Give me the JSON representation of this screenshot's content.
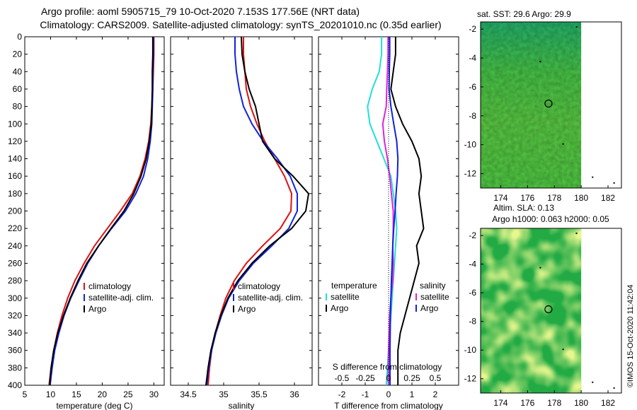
{
  "header": {
    "title_line1": "Argo profile: aoml 5905715_79 10-Oct-2020 7.153S 177.56E (NRT data)",
    "title_line2": "Climatology: CARS2009. Satellite-adjusted climatology: synTS_20201010.nc (0.35d earlier)"
  },
  "credit": "©IMOS 15-Oct-2020 11:42:04",
  "colors": {
    "climatology": "#dd1111",
    "satellite": "#1122dd",
    "argo": "#000000",
    "sat_temp": "#22dddd",
    "sat_sal": "#dd22dd",
    "map_dark": "#22aa44",
    "map_light": "#ccee44"
  },
  "chart_data": [
    {
      "type": "line",
      "name": "temperature",
      "title": "",
      "xlabel": "temperature (deg C)",
      "ylabel": "",
      "xlim": [
        5,
        32
      ],
      "ylim": [
        400,
        0
      ],
      "xticks": [
        5,
        10,
        15,
        20,
        25,
        30
      ],
      "yticks": [
        0,
        20,
        40,
        60,
        80,
        100,
        120,
        140,
        160,
        180,
        200,
        220,
        240,
        260,
        280,
        300,
        320,
        340,
        360,
        380,
        400
      ],
      "legend": [
        "climatology",
        "satellite-adj. clim.",
        "Argo"
      ],
      "series": [
        {
          "name": "climatology",
          "color": "#dd1111",
          "x": [
            30.0,
            30.0,
            29.9,
            29.8,
            29.6,
            29.4,
            29.0,
            28.3,
            27.3,
            25.8,
            23.5,
            21.0,
            18.5,
            16.5,
            14.7,
            13.3,
            12.2,
            11.3,
            10.6,
            10.1,
            9.7
          ],
          "y": [
            0,
            20,
            40,
            60,
            80,
            100,
            120,
            140,
            160,
            180,
            200,
            220,
            240,
            260,
            280,
            300,
            320,
            340,
            360,
            380,
            400
          ]
        },
        {
          "name": "satellite-adj. clim.",
          "color": "#1122dd",
          "x": [
            29.9,
            29.9,
            29.8,
            29.8,
            29.7,
            29.6,
            29.3,
            28.8,
            28.0,
            26.5,
            24.5,
            21.8,
            19.3,
            17.2,
            15.5,
            13.9,
            12.6,
            11.6,
            10.8,
            10.3,
            9.9
          ],
          "y": [
            0,
            20,
            40,
            60,
            80,
            100,
            120,
            140,
            160,
            180,
            200,
            220,
            240,
            260,
            280,
            300,
            320,
            340,
            360,
            380,
            400
          ]
        },
        {
          "name": "Argo",
          "color": "#000000",
          "x": [
            29.8,
            29.8,
            29.7,
            29.7,
            29.6,
            29.5,
            29.1,
            28.5,
            27.5,
            26.1,
            24.2,
            21.7,
            19.3,
            17.0,
            15.3,
            13.8,
            12.5,
            11.4,
            10.6,
            10.1,
            9.8
          ],
          "y": [
            0,
            20,
            40,
            60,
            80,
            100,
            120,
            140,
            160,
            180,
            200,
            220,
            240,
            260,
            280,
            300,
            320,
            340,
            360,
            380,
            400
          ]
        }
      ]
    },
    {
      "type": "line",
      "name": "salinity",
      "title": "",
      "xlabel": "salinity",
      "ylabel": "",
      "xlim": [
        34.25,
        36.25
      ],
      "ylim": [
        400,
        0
      ],
      "xticks": [
        34.5,
        35,
        35.5,
        36
      ],
      "yticks": [
        0,
        20,
        40,
        60,
        80,
        100,
        120,
        140,
        160,
        180,
        200,
        220,
        240,
        260,
        280,
        300,
        320,
        340,
        360,
        380,
        400
      ],
      "legend": [
        "climatology",
        "satellite-adj. clim.",
        "Argo"
      ],
      "series": [
        {
          "name": "climatology",
          "color": "#dd1111",
          "x": [
            35.28,
            35.28,
            35.3,
            35.32,
            35.38,
            35.47,
            35.58,
            35.72,
            35.86,
            35.96,
            35.95,
            35.8,
            35.55,
            35.32,
            35.15,
            35.03,
            34.95,
            34.88,
            34.83,
            34.8,
            34.78
          ],
          "y": [
            0,
            20,
            40,
            60,
            80,
            100,
            120,
            140,
            160,
            180,
            200,
            220,
            240,
            260,
            280,
            300,
            320,
            340,
            360,
            380,
            400
          ]
        },
        {
          "name": "satellite-adj. clim.",
          "color": "#1122dd",
          "x": [
            35.16,
            35.16,
            35.18,
            35.22,
            35.28,
            35.4,
            35.56,
            35.76,
            35.94,
            36.04,
            36.04,
            35.92,
            35.68,
            35.42,
            35.22,
            35.07,
            34.97,
            34.89,
            34.83,
            34.79,
            34.76
          ],
          "y": [
            0,
            20,
            40,
            60,
            80,
            100,
            120,
            140,
            160,
            180,
            200,
            220,
            240,
            260,
            280,
            300,
            320,
            340,
            360,
            380,
            400
          ]
        },
        {
          "name": "Argo",
          "color": "#000000",
          "x": [
            35.25,
            35.26,
            35.3,
            35.36,
            35.45,
            35.5,
            35.55,
            35.72,
            35.98,
            36.2,
            36.16,
            35.96,
            35.65,
            35.4,
            35.2,
            35.06,
            34.96,
            34.88,
            34.82,
            34.78,
            34.75
          ],
          "y": [
            0,
            20,
            40,
            60,
            80,
            100,
            120,
            140,
            160,
            180,
            200,
            220,
            240,
            260,
            280,
            300,
            320,
            340,
            360,
            380,
            400
          ]
        }
      ]
    },
    {
      "type": "line",
      "name": "differences",
      "title": "",
      "xlabel": "T difference from climatology",
      "xlabel_top": "S difference from climatology",
      "ylabel": "",
      "xlim": [
        -3,
        3
      ],
      "ylim": [
        400,
        0
      ],
      "xticks": [
        -2,
        -1,
        0,
        1,
        2
      ],
      "xticks_s": [
        "-0.5",
        "-0.25",
        "0",
        "0.25",
        "0.5"
      ],
      "yticks": [
        0,
        20,
        40,
        60,
        80,
        100,
        120,
        140,
        160,
        180,
        200,
        220,
        240,
        260,
        280,
        300,
        320,
        340,
        360,
        380,
        400
      ],
      "legend_left_title": "temperature",
      "legend_right_title": "salinity",
      "legend_left": [
        "satellite",
        "Argo"
      ],
      "legend_right": [
        "satellite",
        "Argo"
      ],
      "series": [
        {
          "name": "temperature satellite",
          "color": "#22dddd",
          "x": [
            -0.3,
            -0.3,
            -0.4,
            -0.7,
            -0.9,
            -0.8,
            -0.5,
            -0.2,
            0.1,
            0.2,
            0.3,
            0.35,
            0.3,
            0.25,
            0.2,
            0.15,
            0.1,
            0.05,
            0.0,
            -0.05,
            -0.1
          ],
          "y": [
            0,
            20,
            40,
            60,
            80,
            100,
            120,
            140,
            160,
            180,
            200,
            220,
            240,
            260,
            280,
            300,
            320,
            340,
            360,
            380,
            400
          ]
        },
        {
          "name": "temperature Argo",
          "color": "#000000",
          "x": [
            0.3,
            0.3,
            0.2,
            0.1,
            0.3,
            0.6,
            1.0,
            1.3,
            1.4,
            1.3,
            1.4,
            1.5,
            1.2,
            1.3,
            1.1,
            0.9,
            0.7,
            0.5,
            0.4,
            0.4,
            0.4
          ],
          "y": [
            0,
            20,
            40,
            60,
            80,
            100,
            120,
            140,
            160,
            180,
            200,
            220,
            240,
            260,
            280,
            300,
            320,
            340,
            360,
            380,
            400
          ]
        },
        {
          "name": "salinity satellite",
          "color": "#dd22dd",
          "x": [
            -0.02,
            -0.02,
            -0.05,
            -0.08,
            -0.1,
            -0.25,
            -0.18,
            -0.05,
            0.05,
            0.12,
            0.2,
            0.2,
            0.18,
            0.2,
            0.18,
            0.1,
            0.05,
            0.02,
            0.0,
            -0.01,
            -0.01
          ],
          "y": [
            0,
            20,
            40,
            60,
            80,
            100,
            120,
            140,
            160,
            180,
            200,
            220,
            240,
            260,
            280,
            300,
            320,
            340,
            360,
            380,
            400
          ]
        },
        {
          "name": "salinity Argo",
          "color": "#1122dd",
          "x": [
            0.05,
            0.05,
            0.03,
            0.02,
            0.1,
            0.22,
            0.35,
            0.4,
            0.38,
            0.32,
            0.28,
            0.22,
            0.18,
            0.15,
            0.12,
            0.1,
            0.08,
            0.07,
            0.06,
            0.06,
            0.06
          ],
          "y": [
            0,
            20,
            40,
            60,
            80,
            100,
            120,
            140,
            160,
            180,
            200,
            220,
            240,
            260,
            280,
            300,
            320,
            340,
            360,
            380,
            400
          ]
        }
      ]
    },
    {
      "type": "heatmap",
      "name": "sst_map",
      "title": "sat. SST: 29.6 Argo: 29.9",
      "xlim": [
        172.5,
        183
      ],
      "ylim": [
        -13,
        -1.5
      ],
      "data_xlim": [
        172.5,
        180
      ],
      "xticks": [
        174,
        176,
        178,
        180,
        182
      ],
      "yticks": [
        -2,
        -4,
        -6,
        -8,
        -10,
        -12
      ],
      "marker": {
        "lon": 177.56,
        "lat": -7.153
      }
    },
    {
      "type": "heatmap",
      "name": "sla_map",
      "title_line1": "Altim. SLA: 0.13",
      "title_line2": "Argo h1000: 0.063 h2000: 0.05",
      "xlim": [
        172.5,
        183
      ],
      "ylim": [
        -13,
        -1.5
      ],
      "data_xlim": [
        172.5,
        180
      ],
      "xticks": [
        174,
        176,
        178,
        180,
        182
      ],
      "yticks": [
        -2,
        -4,
        -6,
        -8,
        -10,
        -12
      ],
      "marker": {
        "lon": 177.56,
        "lat": -7.153
      }
    }
  ]
}
